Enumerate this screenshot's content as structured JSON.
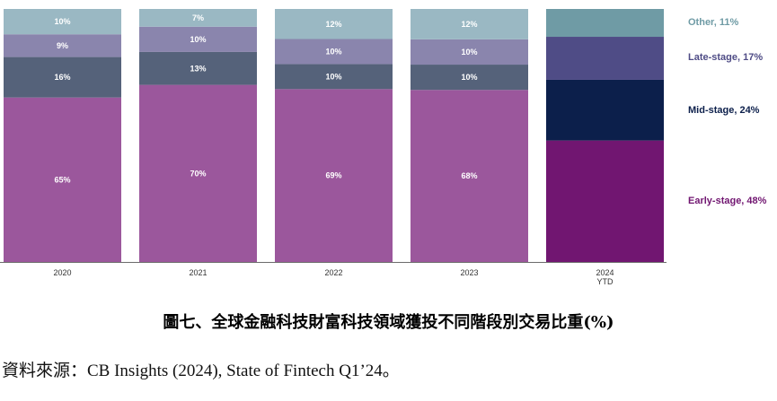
{
  "chart_data": {
    "type": "bar",
    "stacked": true,
    "normalized": true,
    "categories": [
      "2020",
      "2021",
      "2022",
      "2023",
      "2024\nYTD"
    ],
    "series": [
      {
        "name": "Early-stage",
        "values": [
          65,
          70,
          69,
          68,
          48
        ],
        "color": "#9b579c",
        "color_latest": "#711671"
      },
      {
        "name": "Mid-stage",
        "values": [
          16,
          13,
          10,
          10,
          24
        ],
        "color": "#55627a",
        "color_latest": "#0c1f4b"
      },
      {
        "name": "Late-stage",
        "values": [
          9,
          10,
          10,
          10,
          17
        ],
        "color": "#8a85ad",
        "color_latest": "#4f4c86"
      },
      {
        "name": "Other",
        "values": [
          10,
          7,
          12,
          12,
          11
        ],
        "color": "#9ab8c3",
        "color_latest": "#6f9ba5"
      }
    ],
    "segment_labels": [
      [
        "65%",
        "70%",
        "69%",
        "68%",
        ""
      ],
      [
        "16%",
        "13%",
        "10%",
        "10%",
        ""
      ],
      [
        "9%",
        "10%",
        "10%",
        "10%",
        ""
      ],
      [
        "10%",
        "7%",
        "12%",
        "12%",
        ""
      ]
    ],
    "legend": [
      {
        "text": "Other, 11%",
        "color": "#6f9ba5"
      },
      {
        "text": "Late-stage, 17%",
        "color": "#4f4c86"
      },
      {
        "text": "Mid-stage, 24%",
        "color": "#0c1f4b"
      },
      {
        "text": "Early-stage, 48%",
        "color": "#711671"
      }
    ],
    "legend_placement": "right",
    "ylim": [
      0,
      100
    ],
    "grid": false
  },
  "caption": "圖七、全球金融科技財富科技領域獲投不同階段別交易比重(%)",
  "source": "資料來源：CB Insights (2024), State of Fintech Q1’24。"
}
